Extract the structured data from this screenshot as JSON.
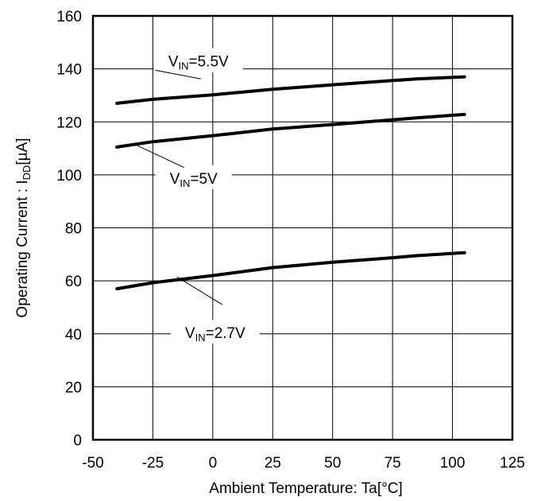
{
  "chart_data": {
    "type": "line",
    "title": "",
    "xlabel": "Ambient Temperature: Ta[°C]",
    "ylabel": {
      "main": "Operating Current : I",
      "sub": "DD",
      "unit": "[µA]"
    },
    "xlim": [
      -50,
      125
    ],
    "ylim": [
      0,
      160
    ],
    "xticks": [
      -50,
      -25,
      0,
      25,
      50,
      75,
      100,
      125
    ],
    "yticks": [
      0,
      20,
      40,
      60,
      80,
      100,
      120,
      140,
      160
    ],
    "grid": true,
    "series": [
      {
        "name": "VIN=5.5V",
        "label": {
          "v": "V",
          "sub": "IN",
          "rest": "=5.5V"
        },
        "x": [
          -40,
          -25,
          0,
          25,
          50,
          75,
          85,
          105
        ],
        "y": [
          127,
          128.5,
          130.2,
          132.3,
          134,
          135.6,
          136.2,
          137
        ]
      },
      {
        "name": "VIN=5V",
        "label": {
          "v": "V",
          "sub": "IN",
          "rest": "=5V"
        },
        "x": [
          -40,
          -25,
          0,
          25,
          50,
          75,
          85,
          105
        ],
        "y": [
          110.5,
          112.5,
          114.8,
          117.3,
          119,
          120.8,
          121.5,
          122.8
        ]
      },
      {
        "name": "VIN=2.7V",
        "label": {
          "v": "V",
          "sub": "IN",
          "rest": "=2.7V"
        },
        "x": [
          -40,
          -25,
          0,
          25,
          50,
          75,
          85,
          105
        ],
        "y": [
          57,
          59.3,
          62,
          65,
          67,
          68.7,
          69.5,
          70.6
        ]
      }
    ]
  }
}
